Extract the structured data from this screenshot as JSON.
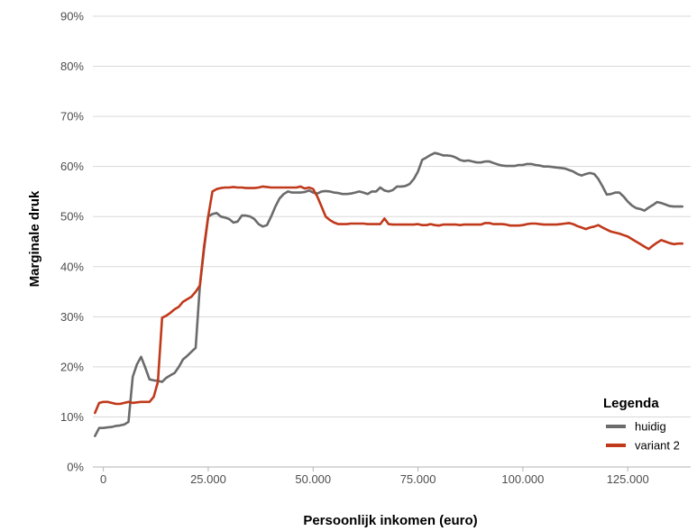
{
  "chart_data": {
    "type": "line",
    "title": "",
    "xlabel": "Persoonlijk inkomen (euro)",
    "ylabel": "Marginale druk",
    "xlim": [
      -2500,
      140000
    ],
    "ylim": [
      0,
      0.9
    ],
    "x_ticks": [
      {
        "value": 0,
        "label": "0"
      },
      {
        "value": 25000,
        "label": "25.000"
      },
      {
        "value": 50000,
        "label": "50.000"
      },
      {
        "value": 75000,
        "label": "75.000"
      },
      {
        "value": 100000,
        "label": "100.000"
      },
      {
        "value": 125000,
        "label": "125.000"
      }
    ],
    "y_ticks": [
      {
        "value": 0,
        "label": "0%"
      },
      {
        "value": 0.1,
        "label": "10%"
      },
      {
        "value": 0.2,
        "label": "20%"
      },
      {
        "value": 0.3,
        "label": "30%"
      },
      {
        "value": 0.4,
        "label": "40%"
      },
      {
        "value": 0.5,
        "label": "50%"
      },
      {
        "value": 0.6,
        "label": "60%"
      },
      {
        "value": 0.7,
        "label": "70%"
      },
      {
        "value": 0.8,
        "label": "80%"
      },
      {
        "value": 0.9,
        "label": "90%"
      }
    ],
    "grid": true,
    "legend": {
      "title": "Legenda",
      "position": "bottom-right"
    },
    "series": [
      {
        "name": "huidig",
        "color": "#6b6b6b",
        "points": [
          [
            -2000,
            0.062
          ],
          [
            -1000,
            0.078
          ],
          [
            0,
            0.078
          ],
          [
            1000,
            0.079
          ],
          [
            2000,
            0.08
          ],
          [
            3000,
            0.082
          ],
          [
            4000,
            0.083
          ],
          [
            5000,
            0.085
          ],
          [
            6000,
            0.09
          ],
          [
            7000,
            0.18
          ],
          [
            8000,
            0.205
          ],
          [
            9000,
            0.22
          ],
          [
            10000,
            0.198
          ],
          [
            11000,
            0.175
          ],
          [
            12000,
            0.173
          ],
          [
            13000,
            0.172
          ],
          [
            14000,
            0.17
          ],
          [
            15000,
            0.178
          ],
          [
            16000,
            0.183
          ],
          [
            17000,
            0.188
          ],
          [
            18000,
            0.2
          ],
          [
            19000,
            0.215
          ],
          [
            20000,
            0.222
          ],
          [
            21000,
            0.23
          ],
          [
            22000,
            0.238
          ],
          [
            23000,
            0.36
          ],
          [
            24000,
            0.435
          ],
          [
            25000,
            0.5
          ],
          [
            26000,
            0.505
          ],
          [
            27000,
            0.507
          ],
          [
            28000,
            0.5
          ],
          [
            29000,
            0.498
          ],
          [
            30000,
            0.495
          ],
          [
            31000,
            0.488
          ],
          [
            32000,
            0.49
          ],
          [
            33000,
            0.502
          ],
          [
            34000,
            0.502
          ],
          [
            35000,
            0.5
          ],
          [
            36000,
            0.495
          ],
          [
            37000,
            0.485
          ],
          [
            38000,
            0.48
          ],
          [
            39000,
            0.483
          ],
          [
            40000,
            0.5
          ],
          [
            41000,
            0.52
          ],
          [
            42000,
            0.536
          ],
          [
            43000,
            0.545
          ],
          [
            44000,
            0.55
          ],
          [
            45000,
            0.548
          ],
          [
            46000,
            0.548
          ],
          [
            47000,
            0.548
          ],
          [
            48000,
            0.549
          ],
          [
            49000,
            0.552
          ],
          [
            50000,
            0.548
          ],
          [
            51000,
            0.546
          ],
          [
            52000,
            0.55
          ],
          [
            53000,
            0.551
          ],
          [
            54000,
            0.55
          ],
          [
            55000,
            0.548
          ],
          [
            56000,
            0.547
          ],
          [
            57000,
            0.545
          ],
          [
            58000,
            0.545
          ],
          [
            59000,
            0.546
          ],
          [
            60000,
            0.548
          ],
          [
            61000,
            0.55
          ],
          [
            62000,
            0.548
          ],
          [
            63000,
            0.545
          ],
          [
            64000,
            0.55
          ],
          [
            65000,
            0.55
          ],
          [
            66000,
            0.558
          ],
          [
            67000,
            0.552
          ],
          [
            68000,
            0.55
          ],
          [
            69000,
            0.553
          ],
          [
            70000,
            0.56
          ],
          [
            71000,
            0.56
          ],
          [
            72000,
            0.561
          ],
          [
            73000,
            0.565
          ],
          [
            74000,
            0.575
          ],
          [
            75000,
            0.59
          ],
          [
            76000,
            0.613
          ],
          [
            77000,
            0.618
          ],
          [
            78000,
            0.623
          ],
          [
            79000,
            0.627
          ],
          [
            80000,
            0.625
          ],
          [
            81000,
            0.622
          ],
          [
            82000,
            0.622
          ],
          [
            83000,
            0.621
          ],
          [
            84000,
            0.618
          ],
          [
            85000,
            0.613
          ],
          [
            86000,
            0.611
          ],
          [
            87000,
            0.612
          ],
          [
            88000,
            0.61
          ],
          [
            89000,
            0.608
          ],
          [
            90000,
            0.608
          ],
          [
            91000,
            0.61
          ],
          [
            92000,
            0.61
          ],
          [
            93000,
            0.607
          ],
          [
            94000,
            0.604
          ],
          [
            95000,
            0.602
          ],
          [
            96000,
            0.601
          ],
          [
            97000,
            0.601
          ],
          [
            98000,
            0.601
          ],
          [
            99000,
            0.603
          ],
          [
            100000,
            0.603
          ],
          [
            101000,
            0.605
          ],
          [
            102000,
            0.605
          ],
          [
            103000,
            0.603
          ],
          [
            104000,
            0.602
          ],
          [
            105000,
            0.6
          ],
          [
            106000,
            0.6
          ],
          [
            107000,
            0.599
          ],
          [
            108000,
            0.598
          ],
          [
            109000,
            0.597
          ],
          [
            110000,
            0.596
          ],
          [
            111000,
            0.593
          ],
          [
            112000,
            0.59
          ],
          [
            113000,
            0.585
          ],
          [
            114000,
            0.582
          ],
          [
            115000,
            0.585
          ],
          [
            116000,
            0.587
          ],
          [
            117000,
            0.585
          ],
          [
            118000,
            0.575
          ],
          [
            119000,
            0.56
          ],
          [
            120000,
            0.544
          ],
          [
            121000,
            0.545
          ],
          [
            122000,
            0.548
          ],
          [
            123000,
            0.548
          ],
          [
            124000,
            0.54
          ],
          [
            125000,
            0.53
          ],
          [
            126000,
            0.522
          ],
          [
            127000,
            0.517
          ],
          [
            128000,
            0.515
          ],
          [
            129000,
            0.512
          ],
          [
            130000,
            0.518
          ],
          [
            131000,
            0.523
          ],
          [
            132000,
            0.529
          ],
          [
            133000,
            0.527
          ],
          [
            134000,
            0.524
          ],
          [
            135000,
            0.521
          ],
          [
            136000,
            0.52
          ],
          [
            137000,
            0.52
          ],
          [
            138000,
            0.52
          ]
        ]
      },
      {
        "name": "variant 2",
        "color": "#c0391b",
        "points": [
          [
            -2000,
            0.108
          ],
          [
            -1000,
            0.128
          ],
          [
            0,
            0.13
          ],
          [
            1000,
            0.13
          ],
          [
            2000,
            0.128
          ],
          [
            3000,
            0.126
          ],
          [
            4000,
            0.126
          ],
          [
            5000,
            0.128
          ],
          [
            6000,
            0.13
          ],
          [
            7000,
            0.128
          ],
          [
            8000,
            0.129
          ],
          [
            9000,
            0.13
          ],
          [
            10000,
            0.13
          ],
          [
            11000,
            0.13
          ],
          [
            12000,
            0.14
          ],
          [
            13000,
            0.17
          ],
          [
            14000,
            0.298
          ],
          [
            15000,
            0.302
          ],
          [
            16000,
            0.308
          ],
          [
            17000,
            0.315
          ],
          [
            18000,
            0.32
          ],
          [
            19000,
            0.33
          ],
          [
            20000,
            0.335
          ],
          [
            21000,
            0.34
          ],
          [
            22000,
            0.35
          ],
          [
            23000,
            0.362
          ],
          [
            24000,
            0.44
          ],
          [
            25000,
            0.5
          ],
          [
            26000,
            0.55
          ],
          [
            27000,
            0.555
          ],
          [
            28000,
            0.557
          ],
          [
            29000,
            0.558
          ],
          [
            30000,
            0.558
          ],
          [
            31000,
            0.559
          ],
          [
            32000,
            0.558
          ],
          [
            33000,
            0.558
          ],
          [
            34000,
            0.557
          ],
          [
            35000,
            0.557
          ],
          [
            36000,
            0.557
          ],
          [
            37000,
            0.558
          ],
          [
            38000,
            0.56
          ],
          [
            39000,
            0.559
          ],
          [
            40000,
            0.558
          ],
          [
            41000,
            0.558
          ],
          [
            42000,
            0.558
          ],
          [
            43000,
            0.558
          ],
          [
            44000,
            0.558
          ],
          [
            45000,
            0.558
          ],
          [
            46000,
            0.558
          ],
          [
            47000,
            0.56
          ],
          [
            48000,
            0.556
          ],
          [
            49000,
            0.558
          ],
          [
            50000,
            0.555
          ],
          [
            51000,
            0.54
          ],
          [
            52000,
            0.52
          ],
          [
            53000,
            0.5
          ],
          [
            54000,
            0.493
          ],
          [
            55000,
            0.488
          ],
          [
            56000,
            0.485
          ],
          [
            57000,
            0.485
          ],
          [
            58000,
            0.485
          ],
          [
            59000,
            0.486
          ],
          [
            60000,
            0.486
          ],
          [
            61000,
            0.486
          ],
          [
            62000,
            0.486
          ],
          [
            63000,
            0.485
          ],
          [
            64000,
            0.485
          ],
          [
            65000,
            0.485
          ],
          [
            66000,
            0.485
          ],
          [
            67000,
            0.496
          ],
          [
            68000,
            0.485
          ],
          [
            69000,
            0.484
          ],
          [
            70000,
            0.484
          ],
          [
            71000,
            0.484
          ],
          [
            72000,
            0.484
          ],
          [
            73000,
            0.484
          ],
          [
            74000,
            0.484
          ],
          [
            75000,
            0.485
          ],
          [
            76000,
            0.483
          ],
          [
            77000,
            0.483
          ],
          [
            78000,
            0.485
          ],
          [
            79000,
            0.483
          ],
          [
            80000,
            0.482
          ],
          [
            81000,
            0.484
          ],
          [
            82000,
            0.484
          ],
          [
            83000,
            0.484
          ],
          [
            84000,
            0.484
          ],
          [
            85000,
            0.483
          ],
          [
            86000,
            0.484
          ],
          [
            87000,
            0.484
          ],
          [
            88000,
            0.484
          ],
          [
            89000,
            0.484
          ],
          [
            90000,
            0.484
          ],
          [
            91000,
            0.487
          ],
          [
            92000,
            0.487
          ],
          [
            93000,
            0.485
          ],
          [
            94000,
            0.485
          ],
          [
            95000,
            0.485
          ],
          [
            96000,
            0.484
          ],
          [
            97000,
            0.482
          ],
          [
            98000,
            0.482
          ],
          [
            99000,
            0.482
          ],
          [
            100000,
            0.483
          ],
          [
            101000,
            0.485
          ],
          [
            102000,
            0.486
          ],
          [
            103000,
            0.486
          ],
          [
            104000,
            0.485
          ],
          [
            105000,
            0.484
          ],
          [
            106000,
            0.484
          ],
          [
            107000,
            0.484
          ],
          [
            108000,
            0.484
          ],
          [
            109000,
            0.485
          ],
          [
            110000,
            0.486
          ],
          [
            111000,
            0.487
          ],
          [
            112000,
            0.485
          ],
          [
            113000,
            0.481
          ],
          [
            114000,
            0.478
          ],
          [
            115000,
            0.475
          ],
          [
            116000,
            0.478
          ],
          [
            117000,
            0.48
          ],
          [
            118000,
            0.483
          ],
          [
            119000,
            0.478
          ],
          [
            120000,
            0.474
          ],
          [
            121000,
            0.47
          ],
          [
            122000,
            0.468
          ],
          [
            123000,
            0.466
          ],
          [
            124000,
            0.463
          ],
          [
            125000,
            0.46
          ],
          [
            126000,
            0.455
          ],
          [
            127000,
            0.45
          ],
          [
            128000,
            0.445
          ],
          [
            129000,
            0.44
          ],
          [
            130000,
            0.435
          ],
          [
            131000,
            0.442
          ],
          [
            132000,
            0.448
          ],
          [
            133000,
            0.453
          ],
          [
            134000,
            0.45
          ],
          [
            135000,
            0.447
          ],
          [
            136000,
            0.445
          ],
          [
            137000,
            0.446
          ],
          [
            138000,
            0.446
          ]
        ]
      }
    ]
  }
}
